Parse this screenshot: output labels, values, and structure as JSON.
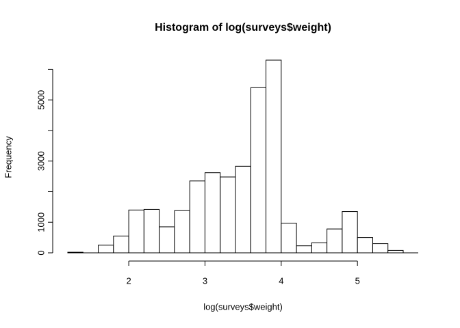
{
  "chart_data": {
    "type": "histogram",
    "title": "Histogram of log(surveys$weight)",
    "x_label": "log(surveys$weight)",
    "y_label": "Frequency",
    "bins": [
      1.2,
      1.4,
      1.6,
      1.8,
      2.0,
      2.2,
      2.4,
      2.6,
      2.8,
      3.0,
      3.2,
      3.4,
      3.6,
      3.8,
      4.0,
      4.2,
      4.4,
      4.6,
      4.8,
      5.0,
      5.2,
      5.4,
      5.6
    ],
    "values": [
      20,
      0,
      250,
      550,
      1400,
      1420,
      850,
      1380,
      2350,
      2620,
      2480,
      2830,
      5400,
      6300,
      970,
      230,
      330,
      780,
      1350,
      500,
      300,
      80
    ],
    "color": "#ffffff",
    "xlim": [
      1.2,
      5.6
    ],
    "xticks": [
      2,
      3,
      4,
      5
    ],
    "ylim": [
      0,
      6300
    ],
    "yticks": [
      0,
      1000,
      3000,
      5000
    ],
    "yticks_unlabeled": [
      2000,
      4000,
      6000
    ]
  }
}
